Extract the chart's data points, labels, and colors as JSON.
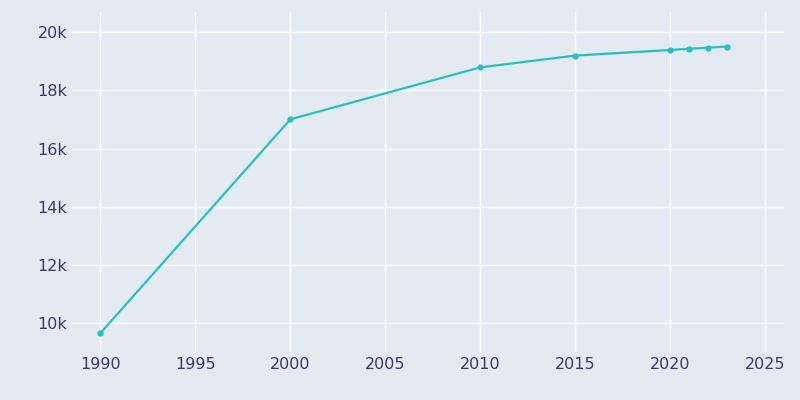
{
  "years": [
    1990,
    2000,
    2010,
    2015,
    2020,
    2021,
    2022,
    2023
  ],
  "population": [
    9650,
    17006,
    18795,
    19200,
    19393,
    19435,
    19472,
    19510
  ],
  "line_color": "#2abfbf",
  "marker": "o",
  "marker_size": 3.5,
  "linewidth": 1.6,
  "bg_color": "#e4eaf2",
  "grid_color": "#ffffff",
  "xlim": [
    1988.5,
    2026
  ],
  "ylim": [
    9000,
    20700
  ],
  "xticks": [
    1990,
    1995,
    2000,
    2005,
    2010,
    2015,
    2020,
    2025
  ],
  "yticks": [
    10000,
    12000,
    14000,
    16000,
    18000,
    20000
  ],
  "tick_label_color": "#3a3a6a",
  "tick_fontsize": 11.5
}
